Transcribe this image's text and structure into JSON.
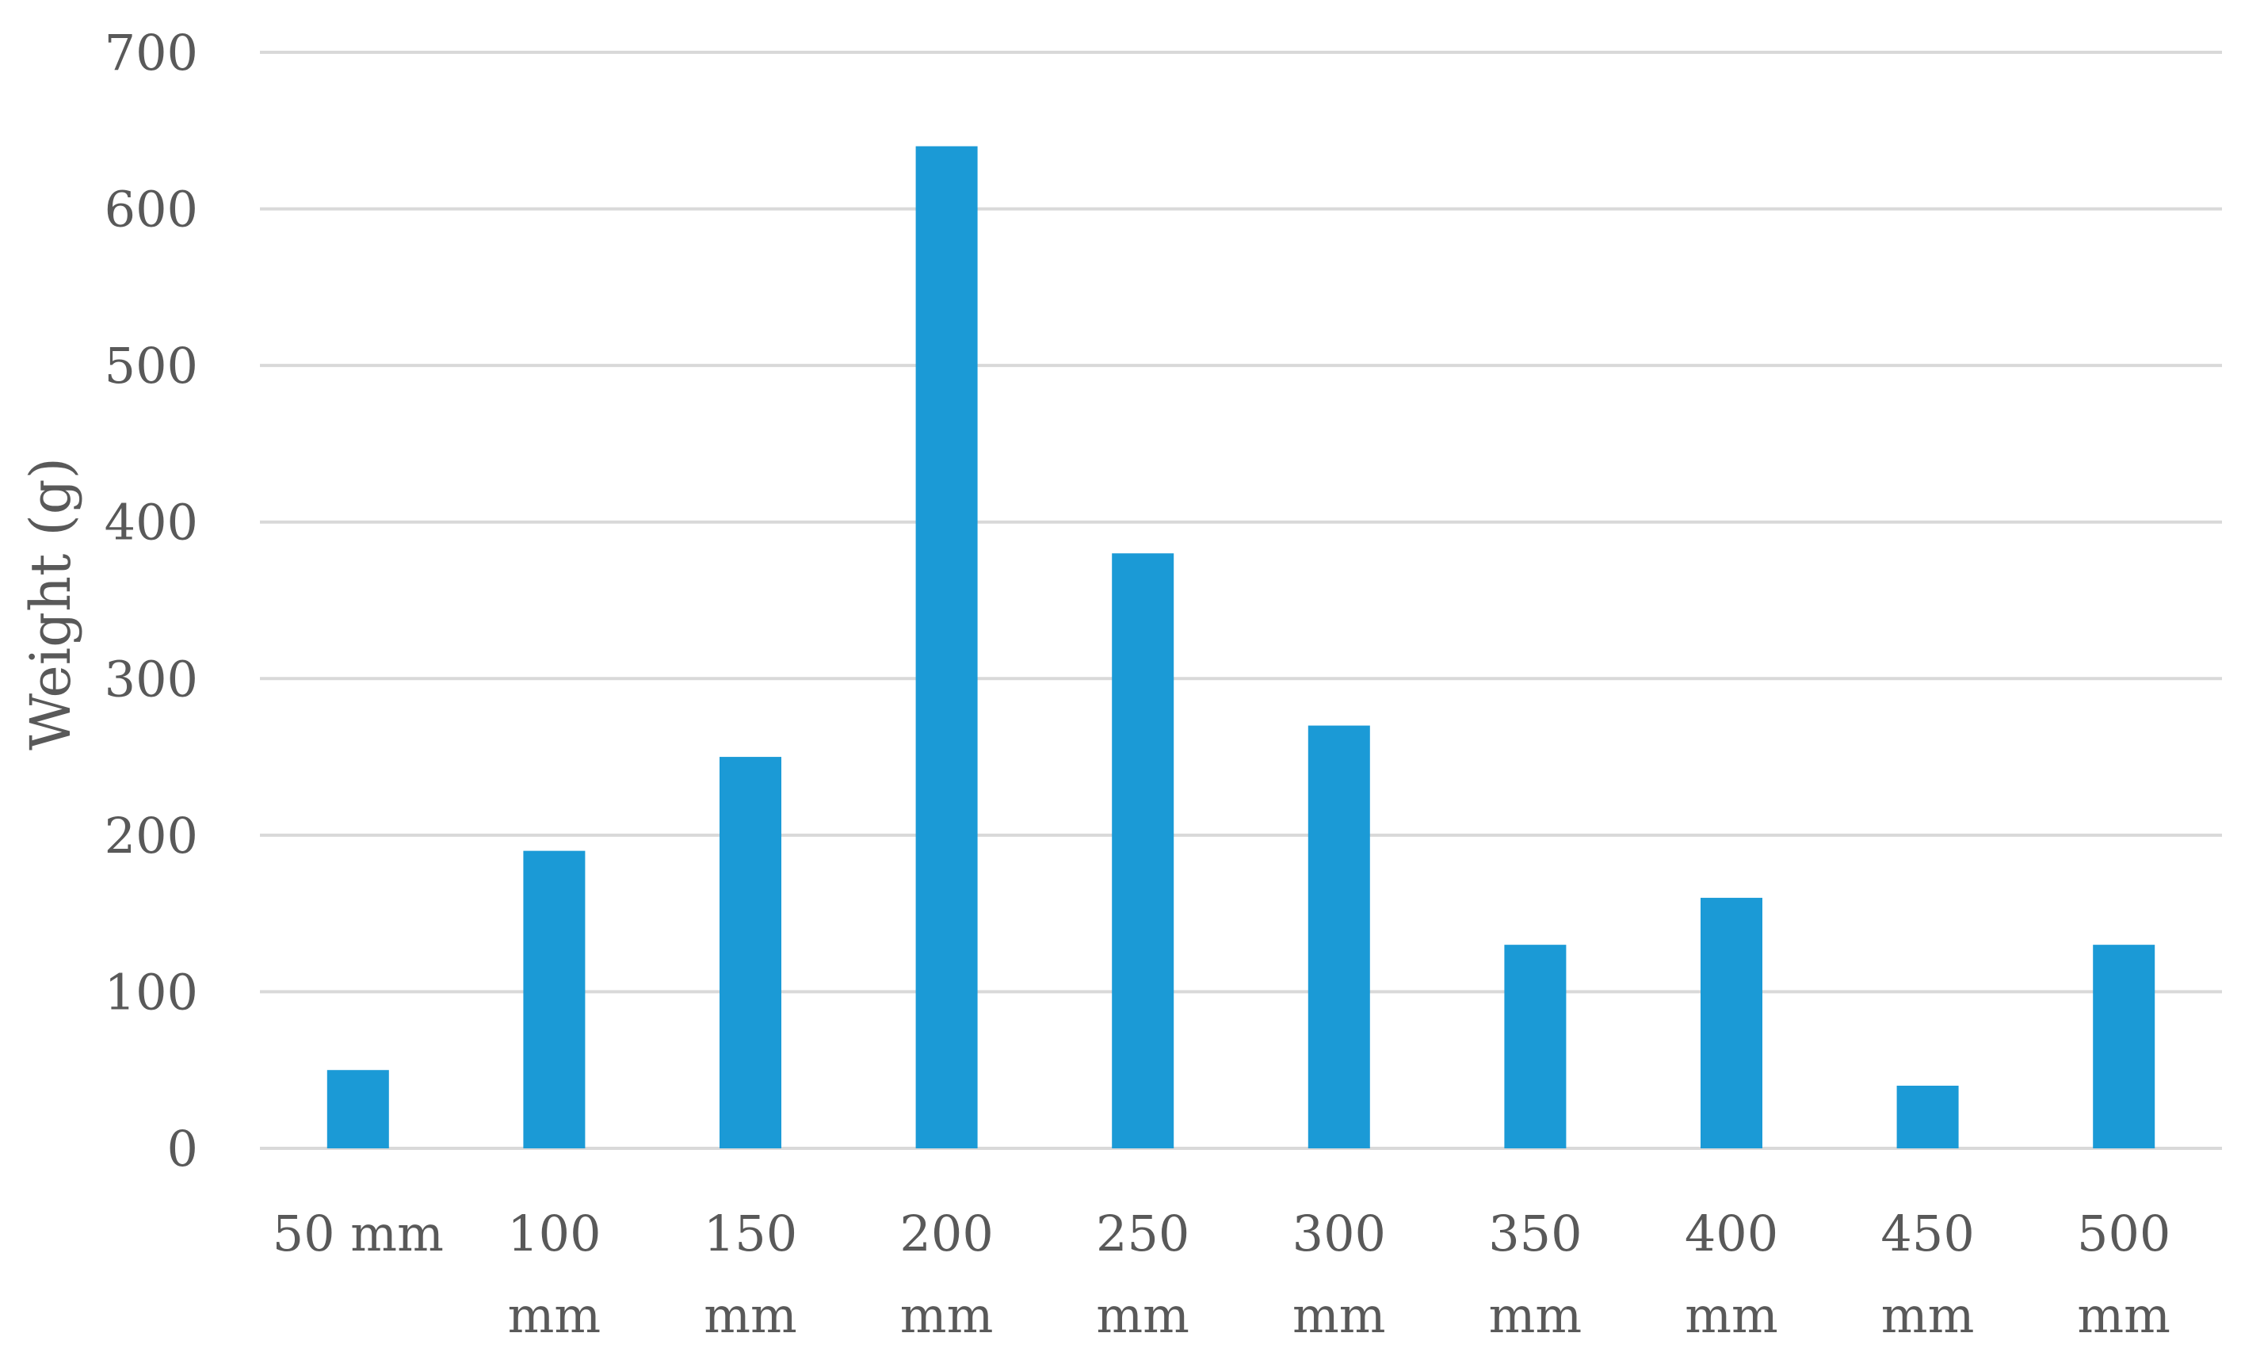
{
  "chart_data": {
    "type": "bar",
    "categories": [
      "50 mm",
      "100 mm",
      "150 mm",
      "200 mm",
      "250 mm",
      "300 mm",
      "350 mm",
      "400 mm",
      "450 mm",
      "500 mm"
    ],
    "category_lines": [
      [
        "50 mm"
      ],
      [
        "100",
        "mm"
      ],
      [
        "150",
        "mm"
      ],
      [
        "200",
        "mm"
      ],
      [
        "250",
        "mm"
      ],
      [
        "300",
        "mm"
      ],
      [
        "350",
        "mm"
      ],
      [
        "400",
        "mm"
      ],
      [
        "450",
        "mm"
      ],
      [
        "500",
        "mm"
      ]
    ],
    "values": [
      50,
      190,
      250,
      640,
      380,
      270,
      130,
      160,
      40,
      130
    ],
    "title": "",
    "xlabel": "",
    "ylabel": "Weight (g)",
    "ylim": [
      0,
      700
    ],
    "yticks": [
      0,
      100,
      200,
      300,
      400,
      500,
      600,
      700
    ],
    "grid": true,
    "legend": "none",
    "colors": {
      "bar": "#1b9ad6",
      "grid": "#d9d9d9",
      "text": "#595959"
    }
  }
}
